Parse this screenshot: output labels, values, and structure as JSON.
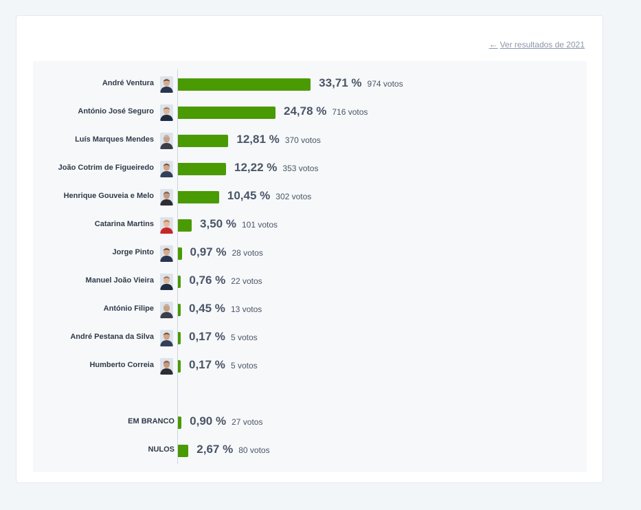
{
  "header": {
    "back_link": "Ver resultados de 2021"
  },
  "chart_data": {
    "type": "bar",
    "orientation": "horizontal",
    "title": "",
    "xlabel": "",
    "ylabel": "",
    "xlim": [
      0,
      100
    ],
    "bar_color": "#4a9a04",
    "votes_suffix": "votos",
    "categories": [
      "André Ventura",
      "António José Seguro",
      "Luís Marques Mendes",
      "João Cotrim de Figueiredo",
      "Henrique Gouveia e Melo",
      "Catarina Martins",
      "Jorge Pinto",
      "Manuel João Vieira",
      "António Filipe",
      "André Pestana da Silva",
      "Humberto Correia",
      "EM BRANCO",
      "NULOS"
    ],
    "rows": [
      {
        "name": "André Ventura",
        "percent": 33.71,
        "percent_label": "33,71 %",
        "votes": 974,
        "votes_label": "974 votos",
        "avatar": true,
        "group": "candidates"
      },
      {
        "name": "António José Seguro",
        "percent": 24.78,
        "percent_label": "24,78 %",
        "votes": 716,
        "votes_label": "716 votos",
        "avatar": true,
        "group": "candidates"
      },
      {
        "name": "Luís Marques Mendes",
        "percent": 12.81,
        "percent_label": "12,81 %",
        "votes": 370,
        "votes_label": "370 votos",
        "avatar": true,
        "group": "candidates"
      },
      {
        "name": "João Cotrim de Figueiredo",
        "percent": 12.22,
        "percent_label": "12,22 %",
        "votes": 353,
        "votes_label": "353 votos",
        "avatar": true,
        "group": "candidates"
      },
      {
        "name": "Henrique Gouveia e Melo",
        "percent": 10.45,
        "percent_label": "10,45 %",
        "votes": 302,
        "votes_label": "302 votos",
        "avatar": true,
        "group": "candidates"
      },
      {
        "name": "Catarina Martins",
        "percent": 3.5,
        "percent_label": "3,50 %",
        "votes": 101,
        "votes_label": "101 votos",
        "avatar": true,
        "group": "candidates"
      },
      {
        "name": "Jorge Pinto",
        "percent": 0.97,
        "percent_label": "0,97 %",
        "votes": 28,
        "votes_label": "28 votos",
        "avatar": true,
        "group": "candidates"
      },
      {
        "name": "Manuel João Vieira",
        "percent": 0.76,
        "percent_label": "0,76 %",
        "votes": 22,
        "votes_label": "22 votos",
        "avatar": true,
        "group": "candidates"
      },
      {
        "name": "António Filipe",
        "percent": 0.45,
        "percent_label": "0,45 %",
        "votes": 13,
        "votes_label": "13 votos",
        "avatar": true,
        "group": "candidates"
      },
      {
        "name": "André Pestana da Silva",
        "percent": 0.17,
        "percent_label": "0,17 %",
        "votes": 5,
        "votes_label": "5 votos",
        "avatar": true,
        "group": "candidates"
      },
      {
        "name": "Humberto Correia",
        "percent": 0.17,
        "percent_label": "0,17 %",
        "votes": 5,
        "votes_label": "5 votos",
        "avatar": true,
        "group": "candidates"
      },
      {
        "name": "EM BRANCO",
        "percent": 0.9,
        "percent_label": "0,90 %",
        "votes": 27,
        "votes_label": "27 votos",
        "avatar": false,
        "group": "other"
      },
      {
        "name": "NULOS",
        "percent": 2.67,
        "percent_label": "2,67 %",
        "votes": 80,
        "votes_label": "80 votos",
        "avatar": false,
        "group": "other"
      }
    ]
  }
}
